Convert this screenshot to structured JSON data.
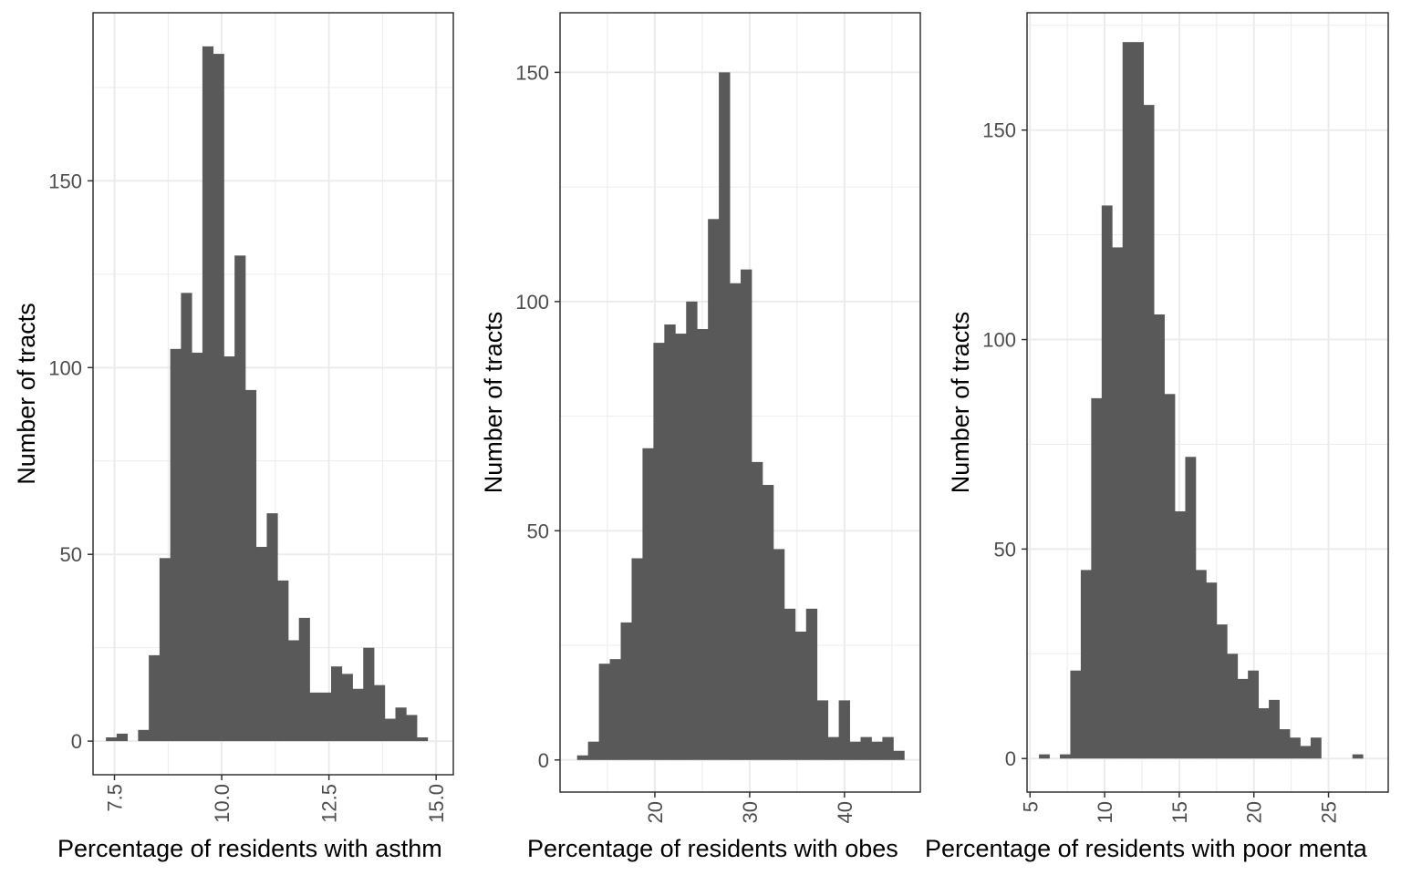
{
  "chart_data": [
    {
      "type": "histogram",
      "xlabel": "Percentage of residents with asthm",
      "ylabel": "Number of tracts",
      "xlim": [
        7.0,
        15.4
      ],
      "ylim": [
        -9,
        195
      ],
      "x_ticks": [
        7.5,
        10.0,
        12.5,
        15.0
      ],
      "x_tick_labels": [
        "7.5",
        "10.0",
        "12.5",
        "15.0"
      ],
      "y_ticks": [
        0,
        50,
        100,
        150
      ],
      "y_tick_labels": [
        "0",
        "50",
        "100",
        "150"
      ],
      "x_minor_breaks": [
        8.75,
        11.25,
        13.75
      ],
      "y_minor_breaks": [
        25,
        75,
        125,
        175
      ],
      "tick_label_rotation": "vertical",
      "bins": [
        {
          "x0": 7.3,
          "x1": 7.55,
          "count": 1
        },
        {
          "x0": 7.55,
          "x1": 7.8,
          "count": 2
        },
        {
          "x0": 8.05,
          "x1": 8.3,
          "count": 3
        },
        {
          "x0": 8.3,
          "x1": 8.55,
          "count": 23
        },
        {
          "x0": 8.55,
          "x1": 8.8,
          "count": 49
        },
        {
          "x0": 8.8,
          "x1": 9.05,
          "count": 105
        },
        {
          "x0": 9.05,
          "x1": 9.3,
          "count": 120
        },
        {
          "x0": 9.3,
          "x1": 9.55,
          "count": 104
        },
        {
          "x0": 9.55,
          "x1": 9.8,
          "count": 186
        },
        {
          "x0": 9.8,
          "x1": 10.05,
          "count": 184
        },
        {
          "x0": 10.05,
          "x1": 10.3,
          "count": 103
        },
        {
          "x0": 10.3,
          "x1": 10.55,
          "count": 130
        },
        {
          "x0": 10.55,
          "x1": 10.8,
          "count": 94
        },
        {
          "x0": 10.8,
          "x1": 11.05,
          "count": 52
        },
        {
          "x0": 11.05,
          "x1": 11.3,
          "count": 61
        },
        {
          "x0": 11.3,
          "x1": 11.55,
          "count": 43
        },
        {
          "x0": 11.55,
          "x1": 11.8,
          "count": 27
        },
        {
          "x0": 11.8,
          "x1": 12.05,
          "count": 33
        },
        {
          "x0": 12.05,
          "x1": 12.3,
          "count": 13
        },
        {
          "x0": 12.3,
          "x1": 12.55,
          "count": 13
        },
        {
          "x0": 12.55,
          "x1": 12.8,
          "count": 20
        },
        {
          "x0": 12.8,
          "x1": 13.05,
          "count": 18
        },
        {
          "x0": 13.05,
          "x1": 13.3,
          "count": 14
        },
        {
          "x0": 13.3,
          "x1": 13.55,
          "count": 25
        },
        {
          "x0": 13.55,
          "x1": 13.8,
          "count": 15
        },
        {
          "x0": 13.8,
          "x1": 14.05,
          "count": 6
        },
        {
          "x0": 14.05,
          "x1": 14.3,
          "count": 9
        },
        {
          "x0": 14.3,
          "x1": 14.55,
          "count": 7
        },
        {
          "x0": 14.55,
          "x1": 14.8,
          "count": 1
        }
      ]
    },
    {
      "type": "histogram",
      "xlabel": "Percentage of residents with obes",
      "ylabel": "Number of tracts",
      "xlim": [
        10.0,
        48.0
      ],
      "ylim": [
        -7,
        163
      ],
      "x_ticks": [
        20,
        30,
        40
      ],
      "x_tick_labels": [
        "20",
        "30",
        "40"
      ],
      "y_ticks": [
        0,
        50,
        100,
        150
      ],
      "y_tick_labels": [
        "0",
        "50",
        "100",
        "150"
      ],
      "x_minor_breaks": [
        15,
        25,
        35,
        45
      ],
      "y_minor_breaks": [
        25,
        75,
        125
      ],
      "tick_label_rotation": "vertical",
      "bins": [
        {
          "x0": 11.8,
          "x1": 12.95,
          "count": 1
        },
        {
          "x0": 12.95,
          "x1": 14.1,
          "count": 4
        },
        {
          "x0": 14.1,
          "x1": 15.25,
          "count": 21
        },
        {
          "x0": 15.25,
          "x1": 16.4,
          "count": 22
        },
        {
          "x0": 16.4,
          "x1": 17.55,
          "count": 30
        },
        {
          "x0": 17.55,
          "x1": 18.7,
          "count": 44
        },
        {
          "x0": 18.7,
          "x1": 19.85,
          "count": 68
        },
        {
          "x0": 19.85,
          "x1": 21.0,
          "count": 91
        },
        {
          "x0": 21.0,
          "x1": 22.15,
          "count": 95
        },
        {
          "x0": 22.15,
          "x1": 23.3,
          "count": 93
        },
        {
          "x0": 23.3,
          "x1": 24.45,
          "count": 100
        },
        {
          "x0": 24.45,
          "x1": 25.6,
          "count": 94
        },
        {
          "x0": 25.6,
          "x1": 26.75,
          "count": 118
        },
        {
          "x0": 26.75,
          "x1": 27.9,
          "count": 150
        },
        {
          "x0": 27.9,
          "x1": 29.05,
          "count": 104
        },
        {
          "x0": 29.05,
          "x1": 30.2,
          "count": 107
        },
        {
          "x0": 30.2,
          "x1": 31.35,
          "count": 65
        },
        {
          "x0": 31.35,
          "x1": 32.5,
          "count": 60
        },
        {
          "x0": 32.5,
          "x1": 33.65,
          "count": 46
        },
        {
          "x0": 33.65,
          "x1": 34.8,
          "count": 33
        },
        {
          "x0": 34.8,
          "x1": 35.95,
          "count": 28
        },
        {
          "x0": 35.95,
          "x1": 37.1,
          "count": 33
        },
        {
          "x0": 37.1,
          "x1": 38.25,
          "count": 13
        },
        {
          "x0": 38.25,
          "x1": 39.4,
          "count": 5
        },
        {
          "x0": 39.4,
          "x1": 40.55,
          "count": 13
        },
        {
          "x0": 40.55,
          "x1": 41.7,
          "count": 4
        },
        {
          "x0": 41.7,
          "x1": 42.85,
          "count": 5
        },
        {
          "x0": 42.85,
          "x1": 44.0,
          "count": 4
        },
        {
          "x0": 44.0,
          "x1": 45.15,
          "count": 5
        },
        {
          "x0": 45.15,
          "x1": 46.3,
          "count": 2
        }
      ]
    },
    {
      "type": "histogram",
      "xlabel": "Percentage of residents with poor menta",
      "ylabel": "Number of tracts",
      "xlim": [
        4.8,
        29.0
      ],
      "ylim": [
        -8,
        178
      ],
      "x_ticks": [
        5,
        10,
        15,
        20,
        25
      ],
      "x_tick_labels": [
        "5",
        "10",
        "15",
        "20",
        "25"
      ],
      "y_ticks": [
        0,
        50,
        100,
        150
      ],
      "y_tick_labels": [
        "0",
        "50",
        "100",
        "150"
      ],
      "x_minor_breaks": [
        7.5,
        12.5,
        17.5,
        22.5,
        27.5
      ],
      "y_minor_breaks": [
        25,
        75,
        125,
        175
      ],
      "tick_label_rotation": "vertical",
      "bins": [
        {
          "x0": 5.6,
          "x1": 6.3,
          "count": 1
        },
        {
          "x0": 7.0,
          "x1": 7.7,
          "count": 1
        },
        {
          "x0": 7.7,
          "x1": 8.4,
          "count": 21
        },
        {
          "x0": 8.4,
          "x1": 9.1,
          "count": 45
        },
        {
          "x0": 9.1,
          "x1": 9.8,
          "count": 86
        },
        {
          "x0": 9.8,
          "x1": 10.5,
          "count": 132
        },
        {
          "x0": 10.5,
          "x1": 11.2,
          "count": 122
        },
        {
          "x0": 11.2,
          "x1": 11.9,
          "count": 171
        },
        {
          "x0": 11.9,
          "x1": 12.6,
          "count": 171
        },
        {
          "x0": 12.6,
          "x1": 13.3,
          "count": 156
        },
        {
          "x0": 13.3,
          "x1": 14.0,
          "count": 106
        },
        {
          "x0": 14.0,
          "x1": 14.7,
          "count": 87
        },
        {
          "x0": 14.7,
          "x1": 15.4,
          "count": 59
        },
        {
          "x0": 15.4,
          "x1": 16.1,
          "count": 72
        },
        {
          "x0": 16.1,
          "x1": 16.8,
          "count": 45
        },
        {
          "x0": 16.8,
          "x1": 17.5,
          "count": 42
        },
        {
          "x0": 17.5,
          "x1": 18.2,
          "count": 32
        },
        {
          "x0": 18.2,
          "x1": 18.9,
          "count": 25
        },
        {
          "x0": 18.9,
          "x1": 19.6,
          "count": 19
        },
        {
          "x0": 19.6,
          "x1": 20.3,
          "count": 21
        },
        {
          "x0": 20.3,
          "x1": 21.0,
          "count": 12
        },
        {
          "x0": 21.0,
          "x1": 21.7,
          "count": 14
        },
        {
          "x0": 21.7,
          "x1": 22.4,
          "count": 7
        },
        {
          "x0": 22.4,
          "x1": 23.1,
          "count": 5
        },
        {
          "x0": 23.1,
          "x1": 23.8,
          "count": 3
        },
        {
          "x0": 23.8,
          "x1": 24.5,
          "count": 5
        },
        {
          "x0": 26.6,
          "x1": 27.3,
          "count": 1
        }
      ]
    }
  ],
  "colors": {
    "bar_fill": "#595959",
    "gridline": "#ebebeb",
    "panel_border": "#333333",
    "tick_text": "#4d4d4d",
    "axis_title": "#000000",
    "background": "#ffffff"
  }
}
